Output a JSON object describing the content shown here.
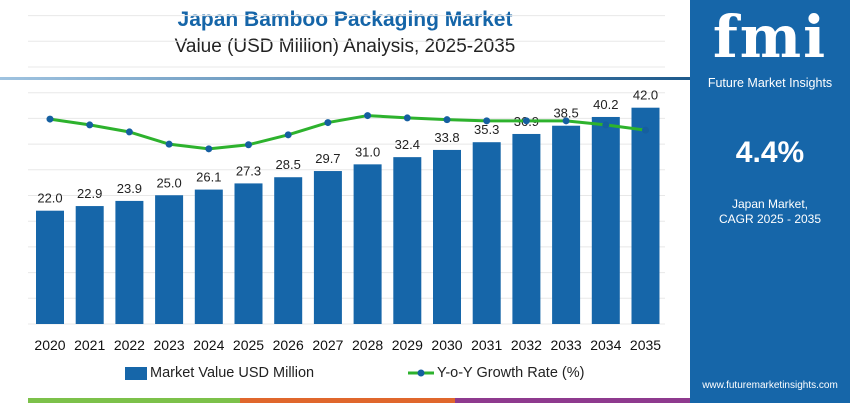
{
  "header": {
    "title": "Japan Bamboo Packaging Market",
    "subtitle": "Value (USD Million) Analysis, 2025-2035"
  },
  "panel": {
    "logo_text": "fmi",
    "logo_subtitle": "Future Market Insights",
    "cagr_value": "4.4%",
    "cagr_label_1": "Japan Market,",
    "cagr_label_2": "CAGR 2025 - 2035",
    "url": "www.futuremarketinsights.com"
  },
  "colors": {
    "bar": "#1666a9",
    "line": "#2db22d",
    "marker": "#155fa0",
    "panel": "#1666a9",
    "accent_bars": [
      "#7cc14a",
      "#e0672c",
      "#8e3a8e"
    ]
  },
  "chart_data": {
    "type": "bar",
    "categories": [
      "2020",
      "2021",
      "2022",
      "2023",
      "2024",
      "2025",
      "2026",
      "2027",
      "2028",
      "2029",
      "2030",
      "2031",
      "2032",
      "2033",
      "2034",
      "2035"
    ],
    "series": [
      {
        "name": "Market Value USD Million",
        "type": "bar",
        "values": [
          22.0,
          22.9,
          23.9,
          25.0,
          26.1,
          27.3,
          28.5,
          29.7,
          31.0,
          32.4,
          33.8,
          35.3,
          36.9,
          38.5,
          40.2,
          42.0
        ]
      },
      {
        "name": "Y-o-Y Growth Rate (%)",
        "type": "line",
        "values": [
          4.53,
          4.43,
          4.31,
          4.1,
          4.02,
          4.09,
          4.26,
          4.47,
          4.59,
          4.55,
          4.52,
          4.5,
          4.5,
          4.5,
          4.43,
          4.34
        ]
      }
    ],
    "data_labels": [
      "22.0",
      "22.9",
      "23.9",
      "25.0",
      "26.1",
      "27.3",
      "28.5",
      "29.7",
      "31.0",
      "32.4",
      "33.8",
      "35.3",
      "36.9",
      "38.5",
      "40.2",
      "42.0"
    ],
    "grid": true,
    "legend": "bottom"
  }
}
